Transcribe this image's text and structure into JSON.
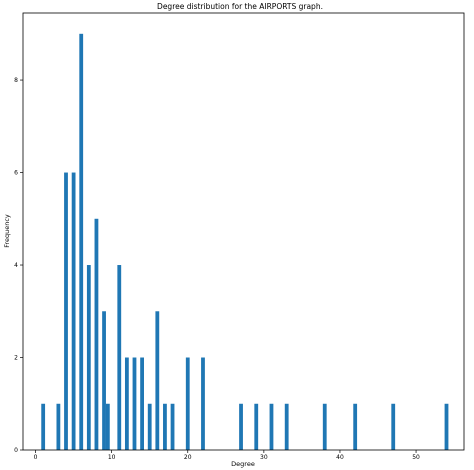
{
  "chart_data": {
    "type": "bar",
    "title": "Degree distribution for the AIRPORTS graph.",
    "xlabel": "Degree",
    "ylabel": "Frequency",
    "xlim": [
      -1.65,
      56.3
    ],
    "ylim": [
      0,
      9.45
    ],
    "xticks": [
      0,
      10,
      20,
      30,
      40,
      50
    ],
    "yticks": [
      0,
      2,
      4,
      6,
      8
    ],
    "bar_color": "#1f77b4",
    "grid": false,
    "x": [
      1,
      3,
      4,
      5,
      6,
      7,
      8,
      9,
      9.5,
      11,
      12,
      13,
      14,
      15,
      16,
      17,
      18,
      20,
      22,
      27,
      29,
      31,
      33,
      38,
      42,
      47,
      54
    ],
    "values": [
      1,
      1,
      6,
      6,
      9,
      4,
      5,
      3,
      1,
      4,
      2,
      2,
      2,
      1,
      3,
      1,
      1,
      2,
      2,
      1,
      1,
      1,
      1,
      1,
      1,
      1,
      1
    ]
  }
}
